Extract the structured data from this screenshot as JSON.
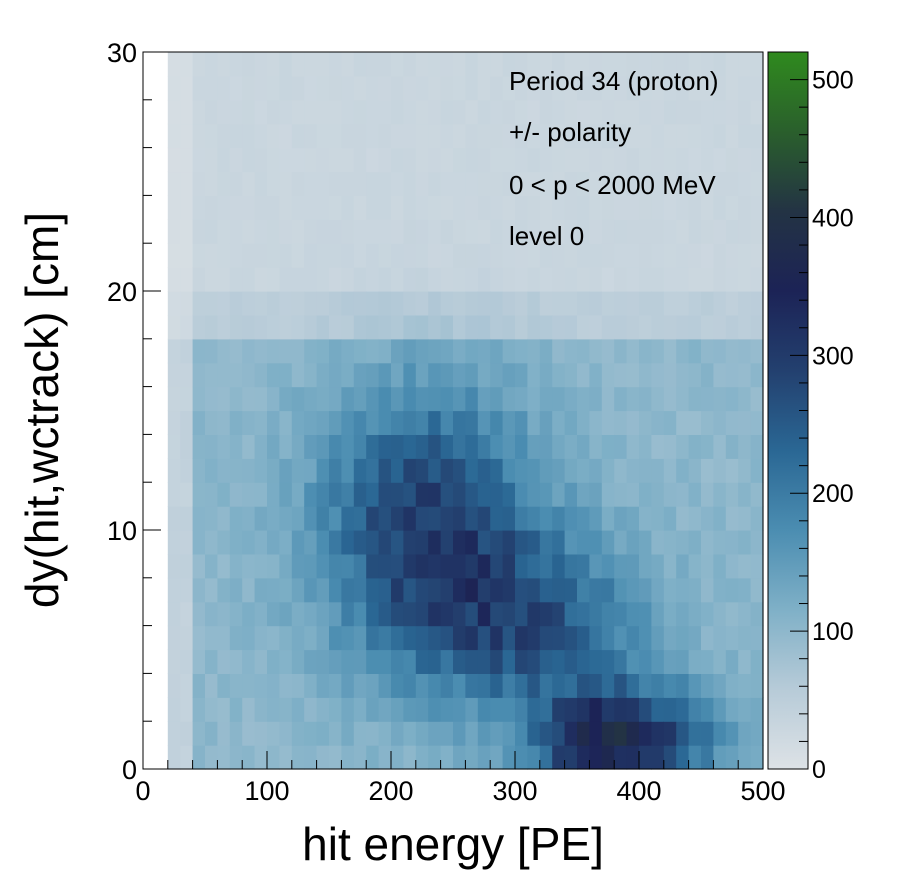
{
  "chart_data": {
    "type": "heatmap",
    "title": "",
    "xlabel": "hit energy [PE]",
    "ylabel": "dy(hit,wctrack) [cm]",
    "xlim": [
      0,
      500
    ],
    "ylim": [
      0,
      30
    ],
    "xticks": [
      "0",
      "100",
      "200",
      "300",
      "400",
      "500"
    ],
    "yticks": [
      "0",
      "10",
      "20",
      "30"
    ],
    "zlim": [
      0,
      520
    ],
    "zticks": [
      "0",
      "100",
      "200",
      "300",
      "400",
      "500"
    ],
    "bins": {
      "x_width": 10,
      "y_width": 1
    },
    "annotations": [
      "Period 34 (proton)",
      "+/- polarity",
      "0 < p < 2000 MeV",
      "level 0"
    ],
    "grid": false,
    "density_model": [
      {
        "x": 370,
        "y": 1,
        "sx": 40,
        "sy": 1.6,
        "z": 230
      },
      {
        "x": 230,
        "y": 10,
        "sx": 60,
        "sy": 4,
        "z": 200
      },
      {
        "x": 320,
        "y": 6,
        "sx": 60,
        "sy": 2.5,
        "z": 140
      },
      {
        "x": 430,
        "y": 1.5,
        "sx": 40,
        "sy": 1.5,
        "z": 90
      }
    ],
    "band_levels": [
      {
        "y_min": 0,
        "y_max": 18,
        "base": 100
      },
      {
        "y_min": 18,
        "y_max": 20,
        "base": 50
      },
      {
        "y_min": 20,
        "y_max": 30,
        "base": 30
      }
    ],
    "colors": {
      "palette": [
        "#dde2e6",
        "#b7cbd8",
        "#7fb0c7",
        "#4b8db1",
        "#2a6794",
        "#23406f",
        "#1c2356",
        "#233344",
        "#2a5f2c",
        "#2f8a1e"
      ],
      "empty": "#ffffff",
      "frame": "#000000"
    }
  }
}
